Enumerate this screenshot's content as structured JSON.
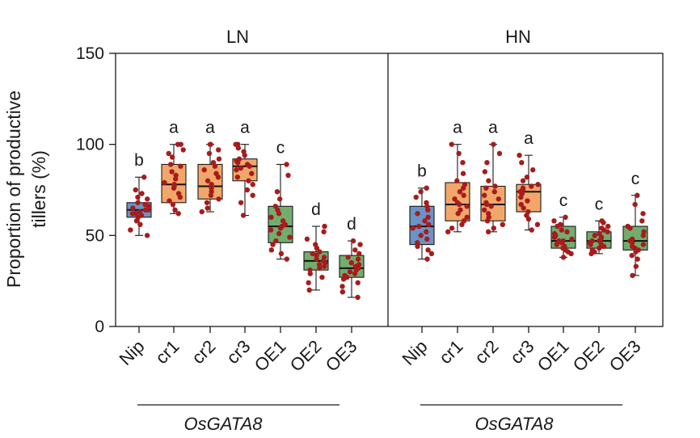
{
  "chart_data": {
    "type": "box",
    "ylabel_lines": [
      "Proportion of productive",
      "tillers (%)"
    ],
    "ylim": [
      0,
      150
    ],
    "yticks": [
      0,
      50,
      100,
      150
    ],
    "group_label": "OsGATA8",
    "colors": {
      "Nip": "#6b93c5",
      "cr": "#f2a76a",
      "OE": "#72ad6d",
      "dot": "#a61c1c",
      "frame": "#1a1a1a"
    },
    "panels": [
      {
        "title": "LN",
        "categories": [
          {
            "label": "Nip",
            "kind": "Nip",
            "letter": "b",
            "min": 50,
            "q1": 60,
            "median": 64,
            "q3": 68,
            "max": 82,
            "points": [
              50,
              53,
              56,
              58,
              60,
              61,
              62,
              62,
              63,
              64,
              64,
              65,
              66,
              67,
              68,
              70,
              71,
              73,
              75,
              82
            ]
          },
          {
            "label": "cr1",
            "kind": "cr",
            "letter": "a",
            "min": 62,
            "q1": 68,
            "median": 78,
            "q3": 89,
            "max": 100,
            "points": [
              62,
              64,
              67,
              69,
              71,
              73,
              76,
              77,
              78,
              79,
              81,
              83,
              85,
              88,
              89,
              93,
              95,
              97,
              100,
              100
            ]
          },
          {
            "label": "cr2",
            "kind": "cr",
            "letter": "a",
            "min": 63,
            "q1": 70,
            "median": 77,
            "q3": 89,
            "max": 100,
            "points": [
              63,
              65,
              68,
              70,
              72,
              74,
              76,
              77,
              78,
              80,
              82,
              84,
              86,
              88,
              90,
              92,
              95,
              97,
              100,
              100
            ]
          },
          {
            "label": "cr3",
            "kind": "cr",
            "letter": "a",
            "min": 61,
            "q1": 80,
            "median": 88,
            "q3": 92,
            "max": 100,
            "points": [
              61,
              68,
              72,
              75,
              78,
              80,
              82,
              84,
              86,
              87,
              88,
              89,
              90,
              91,
              92,
              94,
              96,
              98,
              100,
              100
            ]
          },
          {
            "label": "OE1",
            "kind": "OE",
            "letter": "c",
            "min": 37,
            "q1": 46,
            "median": 55,
            "q3": 66,
            "max": 89,
            "points": [
              37,
              40,
              42,
              45,
              47,
              49,
              51,
              53,
              54,
              55,
              56,
              58,
              60,
              62,
              64,
              66,
              70,
              74,
              83,
              89
            ]
          },
          {
            "label": "OE2",
            "kind": "OE",
            "letter": "d",
            "min": 20,
            "q1": 31,
            "median": 36,
            "q3": 41,
            "max": 55,
            "points": [
              20,
              24,
              27,
              29,
              31,
              32,
              33,
              34,
              35,
              36,
              37,
              38,
              39,
              40,
              41,
              43,
              45,
              48,
              52,
              55
            ]
          },
          {
            "label": "OE3",
            "kind": "OE",
            "letter": "d",
            "min": 16,
            "q1": 27,
            "median": 32,
            "q3": 39,
            "max": 47,
            "points": [
              16,
              19,
              22,
              24,
              26,
              27,
              28,
              29,
              30,
              31,
              32,
              33,
              34,
              35,
              37,
              38,
              40,
              42,
              45,
              47
            ]
          }
        ]
      },
      {
        "title": "HN",
        "categories": [
          {
            "label": "Nip",
            "kind": "Nip",
            "letter": "b",
            "min": 37,
            "q1": 45,
            "median": 55,
            "q3": 66,
            "max": 76,
            "points": [
              37,
              40,
              42,
              44,
              46,
              48,
              50,
              52,
              54,
              55,
              56,
              58,
              60,
              62,
              64,
              66,
              68,
              71,
              74,
              76
            ]
          },
          {
            "label": "cr1",
            "kind": "cr",
            "letter": "a",
            "min": 52,
            "q1": 58,
            "median": 67,
            "q3": 79,
            "max": 100,
            "points": [
              52,
              54,
              56,
              58,
              60,
              62,
              64,
              66,
              67,
              68,
              70,
              72,
              74,
              76,
              78,
              80,
              84,
              90,
              95,
              100
            ]
          },
          {
            "label": "cr2",
            "kind": "cr",
            "letter": "a",
            "min": 52,
            "q1": 58,
            "median": 67,
            "q3": 77,
            "max": 100,
            "points": [
              52,
              54,
              56,
              58,
              60,
              62,
              64,
              66,
              67,
              68,
              70,
              72,
              74,
              76,
              77,
              80,
              85,
              90,
              95,
              100
            ]
          },
          {
            "label": "cr3",
            "kind": "cr",
            "letter": "a",
            "min": 53,
            "q1": 63,
            "median": 74,
            "q3": 78,
            "max": 94,
            "points": [
              53,
              56,
              59,
              61,
              63,
              65,
              67,
              69,
              71,
              73,
              74,
              75,
              76,
              77,
              78,
              80,
              82,
              86,
              90,
              94
            ]
          },
          {
            "label": "OE1",
            "kind": "OE",
            "letter": "c",
            "min": 38,
            "q1": 43,
            "median": 47,
            "q3": 55,
            "max": 60,
            "points": [
              38,
              40,
              41,
              42,
              43,
              44,
              45,
              46,
              47,
              47,
              48,
              49,
              50,
              51,
              52,
              53,
              55,
              56,
              58,
              60
            ]
          },
          {
            "label": "OE2",
            "kind": "OE",
            "letter": "c",
            "min": 40,
            "q1": 43,
            "median": 47,
            "q3": 52,
            "max": 58,
            "points": [
              40,
              41,
              42,
              43,
              44,
              45,
              45,
              46,
              47,
              47,
              48,
              49,
              50,
              51,
              52,
              53,
              54,
              55,
              57,
              58
            ]
          },
          {
            "label": "OE3",
            "kind": "OE",
            "letter": "c",
            "min": 28,
            "q1": 42,
            "median": 47,
            "q3": 55,
            "max": 72,
            "points": [
              28,
              33,
              37,
              39,
              41,
              42,
              43,
              44,
              45,
              46,
              47,
              48,
              50,
              52,
              54,
              55,
              58,
              62,
              67,
              72
            ]
          }
        ]
      }
    ]
  }
}
